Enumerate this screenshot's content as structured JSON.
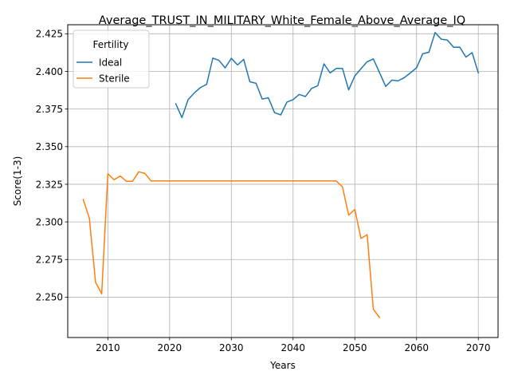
{
  "chart_data": {
    "type": "line",
    "title": "Average_TRUST_IN_MILITARY_White_Female_Above_Average_IQ",
    "xlabel": "Years",
    "ylabel": "Score(1-3)",
    "xlim": [
      2003.5,
      2073.2
    ],
    "ylim": [
      2.2232,
      2.431
    ],
    "xticks": [
      2010,
      2020,
      2030,
      2040,
      2050,
      2060,
      2070
    ],
    "yticks": [
      2.25,
      2.275,
      2.3,
      2.325,
      2.35,
      2.375,
      2.4,
      2.425
    ],
    "ytick_labels": [
      "2.250",
      "2.275",
      "2.300",
      "2.325",
      "2.350",
      "2.375",
      "2.400",
      "2.425"
    ],
    "grid": true,
    "legend": {
      "title": "Fertility",
      "position": "top-left"
    },
    "series": [
      {
        "name": "Ideal",
        "color": "#1f77b4",
        "x": [
          2021,
          2022,
          2023,
          2024,
          2025,
          2026,
          2027,
          2028,
          2029,
          2030,
          2031,
          2032,
          2033,
          2034,
          2035,
          2036,
          2037,
          2038,
          2039,
          2040,
          2041,
          2042,
          2043,
          2044,
          2045,
          2046,
          2047,
          2048,
          2049,
          2050,
          2051,
          2052,
          2053,
          2054,
          2055,
          2056,
          2057,
          2058,
          2059,
          2060,
          2061,
          2062,
          2063,
          2064,
          2065,
          2066,
          2067,
          2068,
          2069,
          2070
        ],
        "y": [
          2.3785,
          2.3693,
          2.3813,
          2.3857,
          2.3893,
          2.3914,
          2.4088,
          2.4073,
          2.4023,
          2.4087,
          2.4043,
          2.408,
          2.3931,
          2.3921,
          2.3816,
          2.3825,
          2.3726,
          2.3711,
          2.3796,
          2.3812,
          2.3847,
          2.3833,
          2.3887,
          2.3905,
          2.405,
          2.399,
          2.402,
          2.402,
          2.3877,
          2.397,
          2.4018,
          2.4064,
          2.4083,
          2.3992,
          2.39,
          2.3942,
          2.3937,
          2.3958,
          2.399,
          2.4024,
          2.4117,
          2.4127,
          2.4258,
          2.4214,
          2.4208,
          2.416,
          2.4161,
          2.4095,
          2.4125,
          2.399
        ]
      },
      {
        "name": "Sterile",
        "color": "#ff7f0e",
        "x": [
          2006,
          2007,
          2008,
          2009,
          2010,
          2011,
          2012,
          2013,
          2014,
          2015,
          2016,
          2017,
          2018,
          2019,
          2020,
          2021,
          2022,
          2023,
          2024,
          2025,
          2026,
          2027,
          2028,
          2029,
          2030,
          2031,
          2032,
          2033,
          2034,
          2035,
          2036,
          2037,
          2038,
          2039,
          2040,
          2041,
          2042,
          2043,
          2044,
          2045,
          2046,
          2047,
          2048,
          2049,
          2050,
          2051,
          2052,
          2053,
          2054
        ],
        "y": [
          2.315,
          2.3025,
          2.26,
          2.2522,
          2.332,
          2.328,
          2.3305,
          2.327,
          2.327,
          2.3333,
          2.3322,
          2.3272,
          2.3272,
          2.3272,
          2.3272,
          2.3272,
          2.3272,
          2.3272,
          2.3272,
          2.3272,
          2.3272,
          2.3272,
          2.3272,
          2.3272,
          2.3272,
          2.3272,
          2.3272,
          2.3272,
          2.3272,
          2.3272,
          2.3272,
          2.3272,
          2.3272,
          2.3272,
          2.3272,
          2.3272,
          2.3272,
          2.3272,
          2.3272,
          2.3272,
          2.3272,
          2.3272,
          2.3233,
          2.3045,
          2.3083,
          2.289,
          2.2915,
          2.242,
          2.2365
        ]
      }
    ]
  }
}
